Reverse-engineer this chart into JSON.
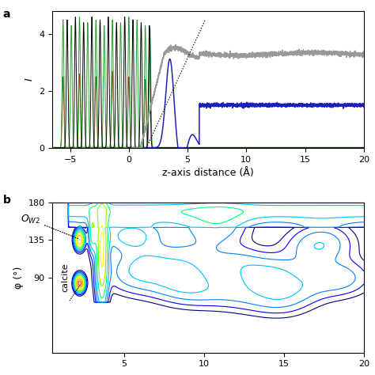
{
  "panel_a": {
    "xlabel": "z-axis distance (Å)",
    "ylabel": "I",
    "xlim": [
      -6.5,
      20
    ],
    "ylim": [
      0,
      4.8
    ],
    "yticks": [
      0,
      2,
      4
    ],
    "xticks": [
      -5,
      0,
      5,
      10,
      15,
      20
    ],
    "label_a": "a"
  },
  "panel_b": {
    "ylabel": "φ (°)",
    "xlim": [
      0.5,
      20
    ],
    "ylim": [
      0,
      180
    ],
    "yticks": [
      90,
      135,
      180
    ],
    "xticks": [
      5,
      10,
      15,
      20
    ],
    "label_b": "b"
  }
}
